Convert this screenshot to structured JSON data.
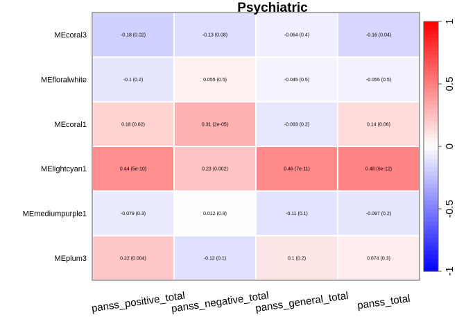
{
  "chart_data": {
    "type": "heatmap",
    "title": "Psychiatric",
    "rows": [
      "MEcoral3",
      "MEfloralwhite",
      "MEcoral1",
      "MElightcyan1",
      "MEmediumpurple1",
      "MEplum3"
    ],
    "columns": [
      "panss_positive_total",
      "panss_negative_total",
      "panss_general_total",
      "panss_total"
    ],
    "values": [
      [
        -0.18,
        -0.13,
        -0.064,
        -0.16
      ],
      [
        -0.1,
        0.055,
        -0.045,
        -0.055
      ],
      [
        0.18,
        0.31,
        -0.093,
        0.14
      ],
      [
        0.44,
        0.23,
        0.46,
        0.48
      ],
      [
        -0.079,
        0.012,
        -0.11,
        -0.097
      ],
      [
        0.22,
        -0.12,
        0.1,
        0.074
      ]
    ],
    "cell_labels": [
      [
        "-0.18 (0.02)",
        "-0.13 (0.08)",
        "-0.064 (0.4)",
        "-0.16 (0.04)"
      ],
      [
        "-0.1 (0.2)",
        "0.055 (0.5)",
        "-0.045 (0.5)",
        "-0.055 (0.5)"
      ],
      [
        "0.18 (0.02)",
        "0.31 (2e-05)",
        "-0.093 (0.2)",
        "0.14 (0.06)"
      ],
      [
        "0.44 (5e-10)",
        "0.23 (0.002)",
        "0.46 (7e-11)",
        "0.48 (6e-12)"
      ],
      [
        "-0.079 (0.3)",
        "0.012 (0.9)",
        "-0.11 (0.1)",
        "-0.097 (0.2)"
      ],
      [
        "0.22 (0.004)",
        "-0.12 (0.1)",
        "0.1 (0.2)",
        "0.074 (0.3)"
      ]
    ],
    "color_scale": {
      "range": [
        -1,
        1
      ],
      "low_color": "#0000ff",
      "mid_color": "#ffffff",
      "high_color": "#ff0000",
      "ticks": [
        -1,
        -0.5,
        0,
        0.5,
        1
      ],
      "tick_labels": [
        "-1",
        "-0.5",
        "0",
        "0.5",
        "1"
      ]
    }
  }
}
